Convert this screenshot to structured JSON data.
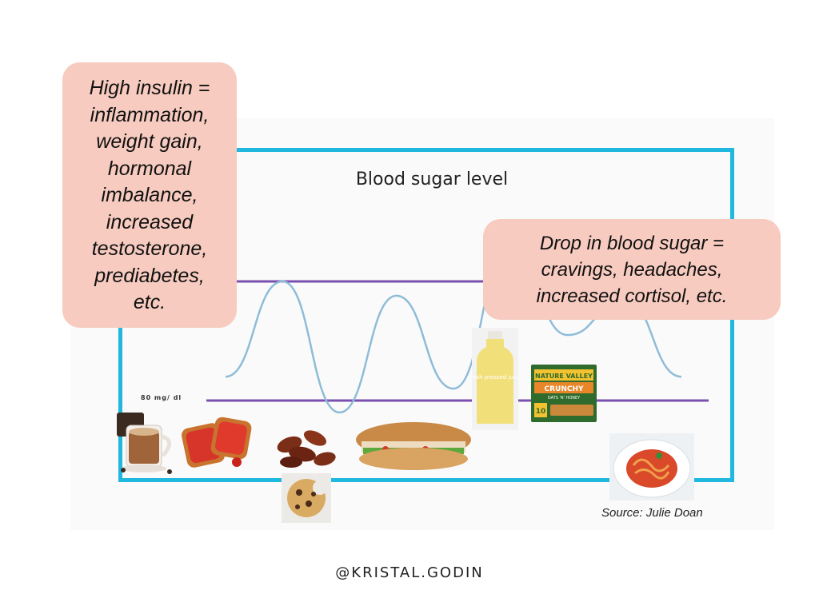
{
  "callouts": {
    "left_lines": [
      "High insulin =",
      "inflammation,",
      "weight gain,",
      "hormonal",
      "imbalance,",
      "increased",
      "testosterone,",
      "prediabetes,",
      "etc."
    ],
    "right_lines": [
      "Drop in blood sugar =",
      "cravings, headaches,",
      "increased cortisol, etc."
    ]
  },
  "chart_data": {
    "type": "line",
    "title": "Blood sugar level",
    "reference_lines": [
      {
        "label": "",
        "level": "high"
      },
      {
        "label": "80 mg/ dl",
        "level": "low"
      }
    ],
    "series": [
      {
        "values": [
          0.2,
          1.0,
          -0.1,
          0.88,
          0.1,
          1.3,
          0.55,
          0.85,
          0.2
        ]
      }
    ],
    "grid": false,
    "legend": "none"
  },
  "foods": [
    {
      "icon": "coffee-mug-icon"
    },
    {
      "icon": "jam-toast-icon"
    },
    {
      "icon": "dates-icon"
    },
    {
      "icon": "cookie-icon"
    },
    {
      "icon": "sub-sandwich-icon"
    },
    {
      "icon": "juice-bottle-icon",
      "text": "fresh pressed juice"
    },
    {
      "icon": "granola-bar-box-icon",
      "brand": "NATURE VALLEY",
      "product": "CRUNCHY",
      "flavor": "OATS 'N' HONEY",
      "count": "10"
    },
    {
      "icon": "spaghetti-plate-icon"
    }
  ],
  "source": "Source: Julie Doan",
  "handle": "@KRISTAL.GODIN",
  "colors": {
    "frame": "#21b8e0",
    "curve": "#8fbcd8",
    "band": "#7a4fb0",
    "callout": "#f7cbbf"
  }
}
